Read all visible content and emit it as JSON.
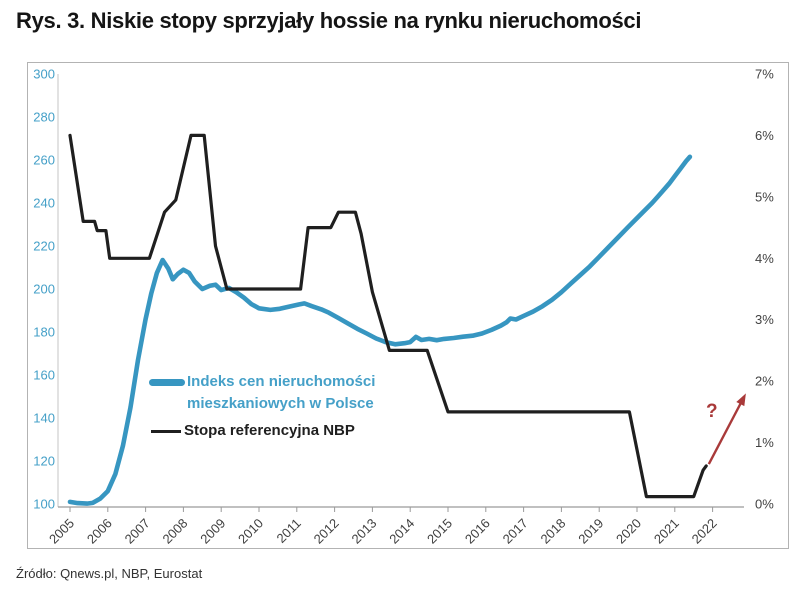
{
  "title": "Rys. 3. Niskie stopy sprzyjały hossie na rynku nieruchomości",
  "source": "Źródło: Qnews.pl, NBP, Eurostat",
  "chart_data": {
    "type": "line",
    "x_ticks": [
      2005,
      2006,
      2007,
      2008,
      2009,
      2010,
      2011,
      2012,
      2013,
      2014,
      2015,
      2016,
      2017,
      2018,
      2019,
      2020,
      2021,
      2022
    ],
    "left_axis": {
      "min": 100,
      "max": 300,
      "tick_step": 20,
      "tick_labels": [
        "100",
        "120",
        "140",
        "160",
        "180",
        "200",
        "220",
        "240",
        "260",
        "280",
        "300"
      ],
      "color": "#45a0c8"
    },
    "right_axis": {
      "min": 0,
      "max": 7,
      "tick_step": 1,
      "tick_labels": [
        "0%",
        "1%",
        "2%",
        "3%",
        "4%",
        "5%",
        "6%",
        "7%"
      ],
      "color": "#424242"
    },
    "x_label_color": "#3f3f3f",
    "grid": "off",
    "legend_position": "inside-left",
    "series": [
      {
        "name": "Indeks cen nieruchomości mieszkaniowych w Polsce",
        "axis": "left",
        "color": "#3796c1",
        "label_color": "#45a0c8",
        "points": [
          [
            2005.0,
            101
          ],
          [
            2005.2,
            100.4
          ],
          [
            2005.45,
            100.2
          ],
          [
            2005.6,
            100.5
          ],
          [
            2005.8,
            102.5
          ],
          [
            2006.0,
            106
          ],
          [
            2006.2,
            114
          ],
          [
            2006.4,
            127
          ],
          [
            2006.6,
            145
          ],
          [
            2006.8,
            167
          ],
          [
            2007.0,
            186
          ],
          [
            2007.15,
            198
          ],
          [
            2007.3,
            207.5
          ],
          [
            2007.45,
            213.5
          ],
          [
            2007.6,
            209.5
          ],
          [
            2007.72,
            204.5
          ],
          [
            2007.85,
            207
          ],
          [
            2008.0,
            209
          ],
          [
            2008.15,
            207.5
          ],
          [
            2008.3,
            203.5
          ],
          [
            2008.5,
            200
          ],
          [
            2008.7,
            201.5
          ],
          [
            2008.85,
            202
          ],
          [
            2009.0,
            199.5
          ],
          [
            2009.2,
            200.5
          ],
          [
            2009.4,
            198.5
          ],
          [
            2009.6,
            196
          ],
          [
            2009.8,
            193
          ],
          [
            2010.0,
            191
          ],
          [
            2010.3,
            190.3
          ],
          [
            2010.55,
            190.8
          ],
          [
            2010.8,
            191.8
          ],
          [
            2011.05,
            192.8
          ],
          [
            2011.2,
            193.3
          ],
          [
            2011.4,
            192
          ],
          [
            2011.65,
            190.5
          ],
          [
            2011.85,
            189
          ],
          [
            2012.1,
            186.5
          ],
          [
            2012.35,
            184
          ],
          [
            2012.6,
            181.5
          ],
          [
            2012.85,
            179.3
          ],
          [
            2013.1,
            177
          ],
          [
            2013.35,
            175.3
          ],
          [
            2013.6,
            174.3
          ],
          [
            2013.85,
            174.8
          ],
          [
            2014.0,
            175.3
          ],
          [
            2014.15,
            177.7
          ],
          [
            2014.3,
            176.3
          ],
          [
            2014.5,
            176.8
          ],
          [
            2014.7,
            176.2
          ],
          [
            2014.9,
            176.8
          ],
          [
            2015.15,
            177.2
          ],
          [
            2015.4,
            177.8
          ],
          [
            2015.65,
            178.3
          ],
          [
            2015.9,
            179.3
          ],
          [
            2016.15,
            181
          ],
          [
            2016.4,
            183
          ],
          [
            2016.55,
            184.5
          ],
          [
            2016.65,
            186.3
          ],
          [
            2016.8,
            185.8
          ],
          [
            2017.0,
            187.5
          ],
          [
            2017.25,
            189.5
          ],
          [
            2017.5,
            192
          ],
          [
            2017.75,
            195
          ],
          [
            2018.0,
            198.5
          ],
          [
            2018.25,
            202.5
          ],
          [
            2018.5,
            206.5
          ],
          [
            2018.75,
            210.5
          ],
          [
            2019.0,
            215
          ],
          [
            2019.25,
            219.5
          ],
          [
            2019.5,
            224
          ],
          [
            2019.75,
            228.5
          ],
          [
            2020.0,
            233
          ],
          [
            2020.2,
            236.5
          ],
          [
            2020.4,
            240
          ],
          [
            2020.55,
            243
          ],
          [
            2020.7,
            246
          ],
          [
            2020.85,
            249
          ],
          [
            2021.0,
            252.5
          ],
          [
            2021.15,
            256
          ],
          [
            2021.3,
            259.5
          ],
          [
            2021.4,
            261.5
          ]
        ]
      },
      {
        "name": "Stopa referencyjna NBP",
        "axis": "right",
        "color": "#1f1f1f",
        "points": [
          [
            2005.0,
            6.0
          ],
          [
            2005.35,
            4.6
          ],
          [
            2005.65,
            4.6
          ],
          [
            2005.72,
            4.45
          ],
          [
            2005.95,
            4.45
          ],
          [
            2006.05,
            4.0
          ],
          [
            2007.1,
            4.0
          ],
          [
            2007.5,
            4.75
          ],
          [
            2007.8,
            4.95
          ],
          [
            2008.2,
            6.0
          ],
          [
            2008.55,
            6.0
          ],
          [
            2008.85,
            4.2
          ],
          [
            2009.0,
            3.85
          ],
          [
            2009.15,
            3.5
          ],
          [
            2011.1,
            3.5
          ],
          [
            2011.3,
            4.5
          ],
          [
            2011.9,
            4.5
          ],
          [
            2012.1,
            4.75
          ],
          [
            2012.55,
            4.75
          ],
          [
            2012.7,
            4.4
          ],
          [
            2013.0,
            3.45
          ],
          [
            2013.45,
            2.5
          ],
          [
            2014.45,
            2.5
          ],
          [
            2015.0,
            1.5
          ],
          [
            2019.8,
            1.5
          ],
          [
            2020.25,
            0.12
          ],
          [
            2021.5,
            0.12
          ],
          [
            2021.75,
            0.55
          ],
          [
            2021.83,
            0.62
          ]
        ]
      }
    ],
    "annotation": {
      "label": "?",
      "color": "#a93a3a",
      "arrow_from": [
        2021.9,
        0.65
      ],
      "arrow_to": [
        2022.88,
        1.8
      ],
      "label_pos": [
        2021.98,
        1.51
      ]
    }
  }
}
